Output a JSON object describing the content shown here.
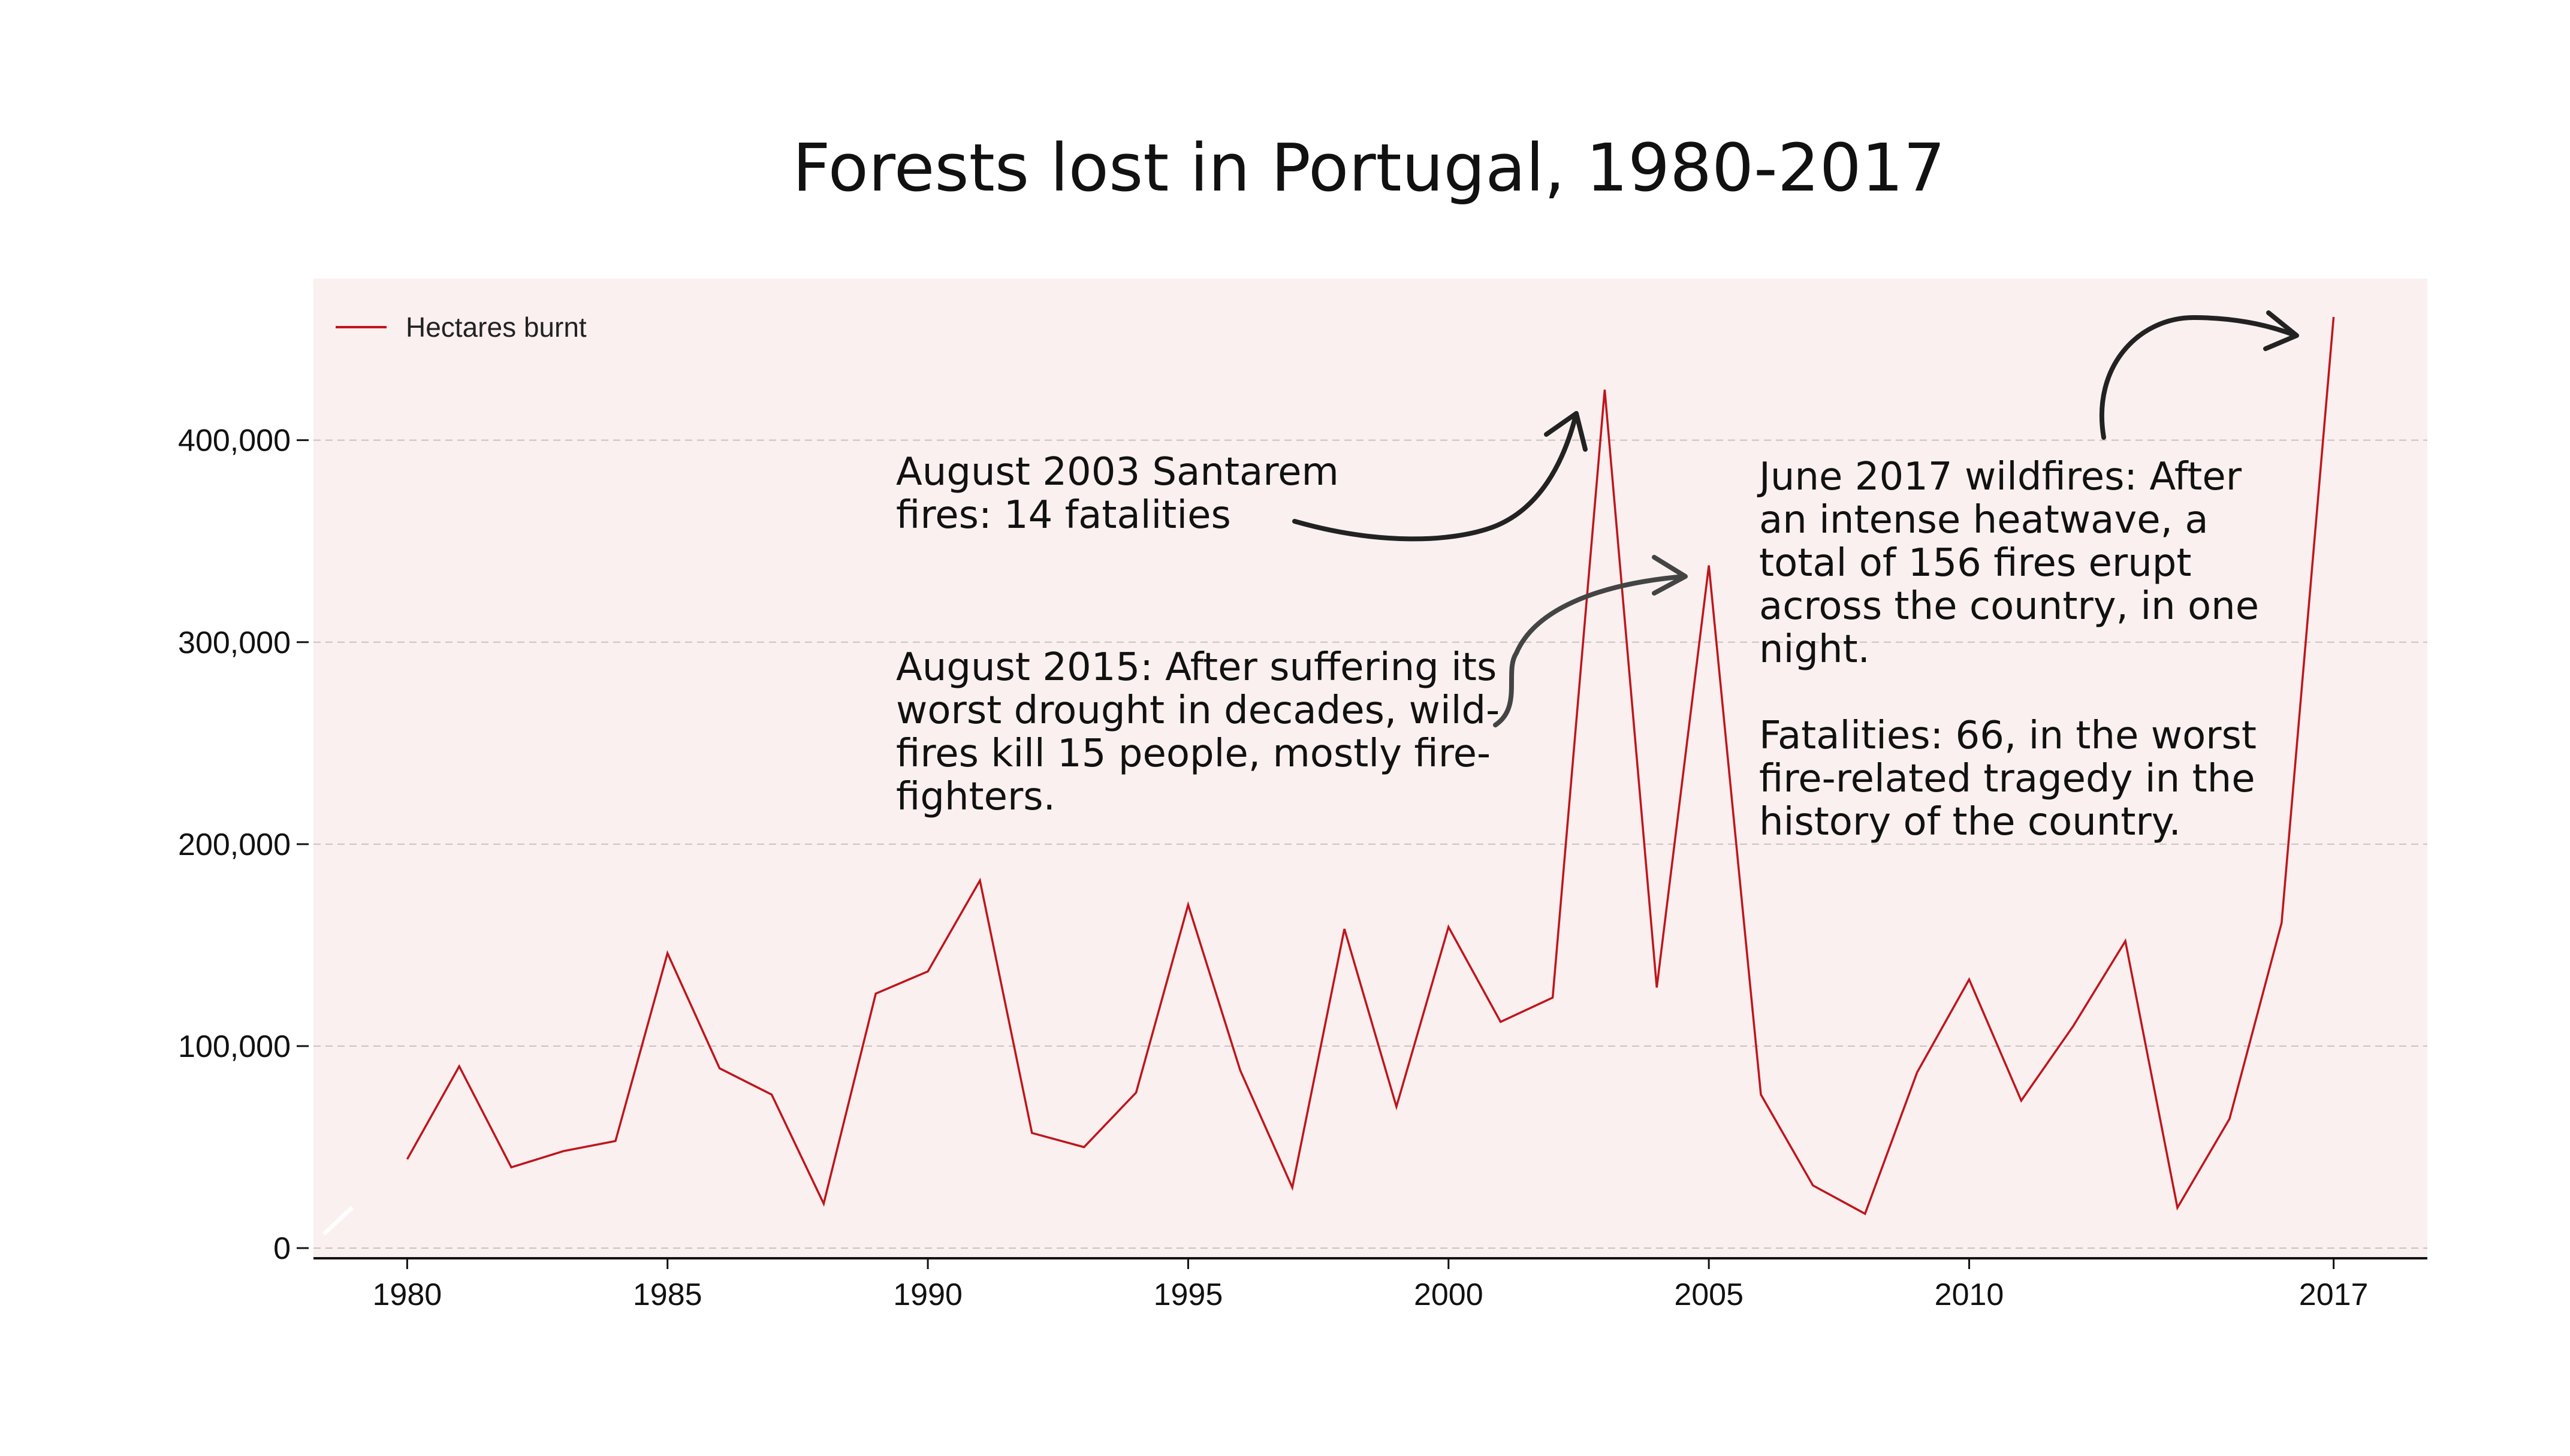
{
  "chart_data": {
    "type": "line",
    "title": "Forests lost in Portugal, 1980-2017",
    "xlabel": "",
    "ylabel": "",
    "x": [
      1980,
      1981,
      1982,
      1983,
      1984,
      1985,
      1986,
      1987,
      1988,
      1989,
      1990,
      1991,
      1992,
      1993,
      1994,
      1995,
      1996,
      1997,
      1998,
      1999,
      2000,
      2001,
      2002,
      2003,
      2004,
      2005,
      2006,
      2007,
      2008,
      2009,
      2010,
      2011,
      2012,
      2013,
      2014,
      2015,
      2016,
      2017
    ],
    "series": [
      {
        "name": "Hectares burnt",
        "color": "#c0141c",
        "values": [
          44000,
          90000,
          40000,
          48000,
          53000,
          146000,
          89000,
          76000,
          22000,
          126000,
          137000,
          182000,
          57000,
          50000,
          77000,
          170000,
          88000,
          30000,
          158000,
          70000,
          159000,
          112000,
          124000,
          425000,
          129000,
          338000,
          76000,
          31000,
          17000,
          87000,
          133000,
          73000,
          110000,
          152000,
          20000,
          64000,
          161000,
          461000
        ]
      }
    ],
    "x_ticks": [
      "1980",
      "1985",
      "1990",
      "1995",
      "2000",
      "2005",
      "2010",
      "2017"
    ],
    "y_ticks": [
      "0",
      "100,000",
      "200,000",
      "300,000",
      "400,000"
    ],
    "ylim": [
      0,
      480000
    ],
    "xlim": [
      1978.2,
      2018.8
    ],
    "grid": "horizontal dashed",
    "legend_position": "top-left",
    "plot_background": "#f9f0ef",
    "annotations": [
      {
        "id": "santarem",
        "text": "August 2003 Santarem\nfires: 14 fatalities"
      },
      {
        "id": "drought",
        "text": "August 2015: After suffering its\nworst drought in decades, wild-\nfires kill 15 people, mostly fire-\nfighters."
      },
      {
        "id": "june2017",
        "text": "June 2017 wildfires: After\nan intense heatwave, a\ntotal of 156 fires erupt\nacross the country, in one\nnight.\n\nFatalities: 66, in the worst\nfire-related tragedy in the\nhistory of the country."
      }
    ]
  }
}
